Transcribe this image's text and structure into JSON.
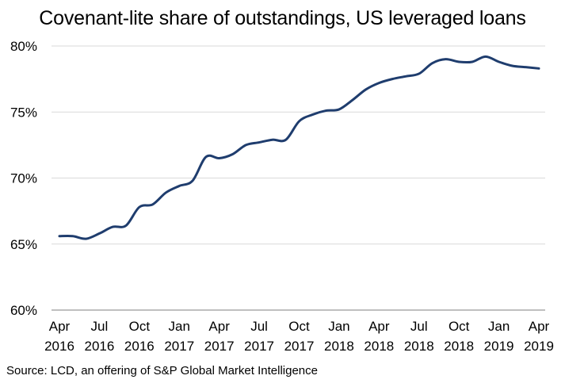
{
  "chart_data": {
    "type": "line",
    "title": "Covenant-lite share of outstandings, US leveraged loans",
    "source": "Source: LCD, an offering of S&P Global Market Intelligence",
    "xlabel": "",
    "ylabel": "",
    "ylim": [
      60,
      80
    ],
    "yticks": [
      "60%",
      "65%",
      "70%",
      "75%",
      "80%"
    ],
    "ytick_values": [
      60,
      65,
      70,
      75,
      80
    ],
    "xticks": [
      {
        "month": "Apr",
        "year": "2016"
      },
      {
        "month": "Jul",
        "year": "2016"
      },
      {
        "month": "Oct",
        "year": "2016"
      },
      {
        "month": "Jan",
        "year": "2017"
      },
      {
        "month": "Apr",
        "year": "2017"
      },
      {
        "month": "Jul",
        "year": "2017"
      },
      {
        "month": "Oct",
        "year": "2017"
      },
      {
        "month": "Jan",
        "year": "2018"
      },
      {
        "month": "Apr",
        "year": "2018"
      },
      {
        "month": "Jul",
        "year": "2018"
      },
      {
        "month": "Oct",
        "year": "2018"
      },
      {
        "month": "Jan",
        "year": "2019"
      },
      {
        "month": "Apr",
        "year": "2019"
      }
    ],
    "grid": true,
    "line_color": "#1f3d6e",
    "series": [
      {
        "x": [
          "2016-04",
          "2016-05",
          "2016-06",
          "2016-07",
          "2016-08",
          "2016-09",
          "2016-10",
          "2016-11",
          "2016-12",
          "2017-01",
          "2017-02",
          "2017-03",
          "2017-04",
          "2017-05",
          "2017-06",
          "2017-07",
          "2017-08",
          "2017-09",
          "2017-10",
          "2017-11",
          "2017-12",
          "2018-01",
          "2018-02",
          "2018-03",
          "2018-04",
          "2018-05",
          "2018-06",
          "2018-07",
          "2018-08",
          "2018-09",
          "2018-10",
          "2018-11",
          "2018-12",
          "2019-01",
          "2019-02",
          "2019-03",
          "2019-04"
        ],
        "values": [
          65.6,
          65.6,
          65.4,
          65.8,
          66.3,
          66.4,
          67.8,
          68.0,
          68.9,
          69.4,
          69.8,
          71.6,
          71.5,
          71.8,
          72.5,
          72.7,
          72.9,
          72.9,
          74.3,
          74.8,
          75.1,
          75.2,
          75.9,
          76.7,
          77.2,
          77.5,
          77.7,
          77.9,
          78.7,
          79.0,
          78.8,
          78.8,
          79.2,
          78.8,
          78.5,
          78.4,
          78.3
        ]
      }
    ]
  }
}
